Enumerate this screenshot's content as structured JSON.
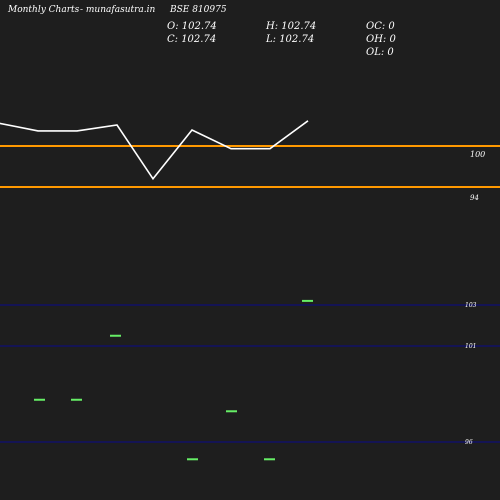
{
  "header": {
    "brand": "Monthly Charts",
    "site": "- munafasutra.in",
    "symbol": "BSE 810975"
  },
  "ohlc": {
    "open": "O: 102.74",
    "high": "H: 102.74",
    "close": "C: 102.74",
    "low": "L: 102.74",
    "oc": "OC: 0",
    "oh": "OH: 0",
    "ol": "OL: 0"
  },
  "colors": {
    "background": "#1e1e1e",
    "price_line": "#ffffff",
    "level_line": "#ff9900",
    "grid_line": "#0b0b8a",
    "bar": "#66ee66"
  },
  "chart_data": [
    {
      "type": "line",
      "series": [
        {
          "values": [
            102.74,
            101.8,
            101.8,
            102.5,
            95.2,
            101.9,
            99.6,
            99.6,
            103.0
          ]
        }
      ],
      "levels": [
        {
          "value": 100,
          "label": "100"
        },
        {
          "value": 94,
          "label": "94"
        }
      ]
    },
    {
      "type": "bar",
      "series": [
        {
          "values": [
            98.2,
            98.2,
            101.5,
            95.1,
            97.6,
            95.1,
            103.2
          ]
        }
      ],
      "gridlines": [
        {
          "value": 103,
          "label": "103"
        },
        {
          "value": 101,
          "label": "101"
        },
        {
          "value": 96,
          "label": "96"
        }
      ]
    }
  ]
}
